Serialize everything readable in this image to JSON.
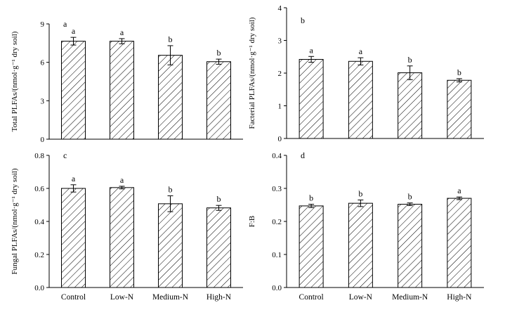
{
  "chart_data": [
    {
      "type": "bar",
      "panel_label": "a",
      "ylabel": "Total PLFAs/(nmol·g⁻¹ dry soil)",
      "ylim": [
        0,
        9
      ],
      "yticks": [
        0,
        3,
        6,
        9
      ],
      "categories": [
        "Control",
        "Low-N",
        "Medium-N",
        "High-N"
      ],
      "values": [
        7.65,
        7.65,
        6.55,
        6.05
      ],
      "errors": [
        0.3,
        0.2,
        0.75,
        0.2
      ],
      "significance": [
        "a",
        "a",
        "b",
        "b"
      ],
      "show_categories": false
    },
    {
      "type": "bar",
      "panel_label": "b",
      "ylabel": "Facterial PLFAs/(nmol·g⁻¹ dry soil)",
      "ylim": [
        0,
        4
      ],
      "yticks": [
        0,
        1,
        2,
        3,
        4
      ],
      "categories": [
        "Control",
        "Low-N",
        "Medium-N",
        "High-N"
      ],
      "values": [
        2.42,
        2.36,
        2.01,
        1.78
      ],
      "errors": [
        0.09,
        0.11,
        0.21,
        0.05
      ],
      "significance": [
        "a",
        "a",
        "b",
        "b"
      ],
      "show_categories": false
    },
    {
      "type": "bar",
      "panel_label": "c",
      "ylabel": "Fungal PLFAs/(nmol·g⁻¹ dry soil)",
      "ylim": [
        0,
        0.8
      ],
      "yticks": [
        0,
        0.2,
        0.4,
        0.6,
        0.8
      ],
      "yticklabels": [
        "0.0",
        "0.2",
        "0.4",
        "0.6",
        "0.8"
      ],
      "categories": [
        "Control",
        "Low-N",
        "Medium-N",
        "High-N"
      ],
      "values": [
        0.6,
        0.605,
        0.507,
        0.482
      ],
      "errors": [
        0.022,
        0.008,
        0.048,
        0.015
      ],
      "significance": [
        "a",
        "a",
        "b",
        "b"
      ],
      "show_categories": true
    },
    {
      "type": "bar",
      "panel_label": "d",
      "ylabel": "F:B",
      "ylim": [
        0,
        0.4
      ],
      "yticks": [
        0,
        0.1,
        0.2,
        0.3,
        0.4
      ],
      "yticklabels": [
        "0.0",
        "0.1",
        "0.2",
        "0.3",
        "0.4"
      ],
      "categories": [
        "Control",
        "Low-N",
        "Medium-N",
        "High-N"
      ],
      "values": [
        0.247,
        0.255,
        0.252,
        0.27
      ],
      "errors": [
        0.005,
        0.01,
        0.004,
        0.004
      ],
      "significance": [
        "b",
        "b",
        "b",
        "a"
      ],
      "show_categories": true
    }
  ]
}
